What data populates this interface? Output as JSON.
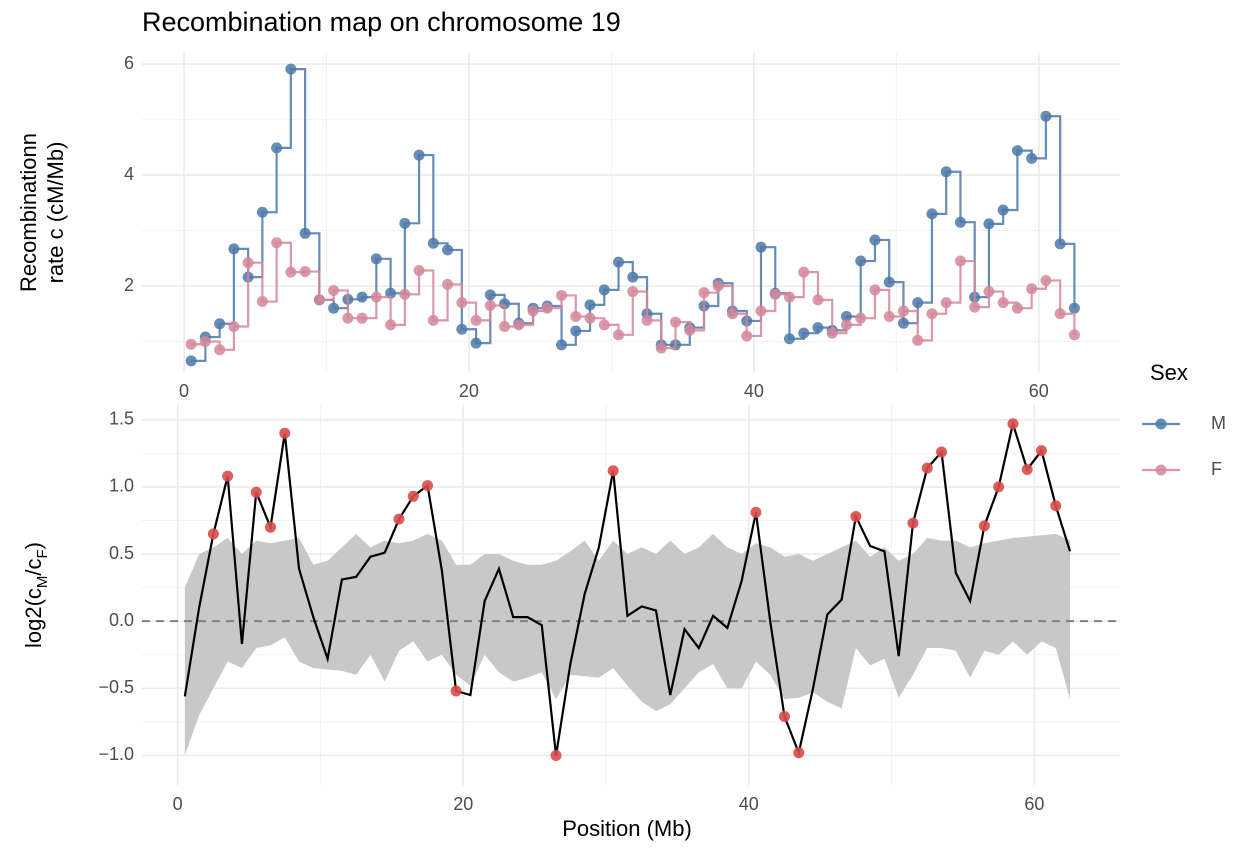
{
  "chart_data": [
    {
      "type": "step",
      "title": "Recombination map on chromosome 19",
      "ylabel": [
        "Recombinationn",
        "rate c (cM/Mb)"
      ],
      "x": [
        0.5,
        1.5,
        2.5,
        3.5,
        4.5,
        5.5,
        6.5,
        7.5,
        8.5,
        9.5,
        10.5,
        11.5,
        12.5,
        13.5,
        14.5,
        15.5,
        16.5,
        17.5,
        18.5,
        19.5,
        20.5,
        21.5,
        22.5,
        23.5,
        24.5,
        25.5,
        26.5,
        27.5,
        28.5,
        29.5,
        30.5,
        31.5,
        32.5,
        33.5,
        34.5,
        35.5,
        36.5,
        37.5,
        38.5,
        39.5,
        40.5,
        41.5,
        42.5,
        43.5,
        44.5,
        45.5,
        46.5,
        47.5,
        48.5,
        49.5,
        50.5,
        51.5,
        52.5,
        53.5,
        54.5,
        55.5,
        56.5,
        57.5,
        58.5,
        59.5,
        60.5,
        61.5,
        62.5
      ],
      "series": [
        {
          "name": "M",
          "color": "#4c78a8",
          "values": [
            0.65,
            1.08,
            1.32,
            2.67,
            2.16,
            3.33,
            4.49,
            5.91,
            2.95,
            1.75,
            1.6,
            1.76,
            1.8,
            2.49,
            1.87,
            3.13,
            4.36,
            2.77,
            2.65,
            1.22,
            0.97,
            1.84,
            1.68,
            1.33,
            1.6,
            1.64,
            0.94,
            1.19,
            1.66,
            1.93,
            2.43,
            2.16,
            1.5,
            0.94,
            0.94,
            1.25,
            1.64,
            2.05,
            1.55,
            1.37,
            2.7,
            1.87,
            1.05,
            1.15,
            1.25,
            1.2,
            1.45,
            2.45,
            2.83,
            2.07,
            1.33,
            1.7,
            3.3,
            4.06,
            3.15,
            1.8,
            3.12,
            3.37,
            4.44,
            4.3,
            5.06,
            2.76,
            1.6
          ]
        },
        {
          "name": "F",
          "color": "#d4879a",
          "values": [
            0.95,
            1.0,
            0.85,
            1.27,
            2.42,
            1.72,
            2.78,
            2.25,
            2.26,
            1.75,
            1.92,
            1.42,
            1.42,
            1.8,
            1.3,
            1.85,
            2.28,
            1.38,
            2.03,
            1.7,
            1.38,
            1.65,
            1.27,
            1.3,
            1.55,
            1.6,
            1.83,
            1.45,
            1.42,
            1.3,
            1.12,
            1.9,
            1.38,
            0.88,
            1.35,
            1.2,
            1.88,
            2.0,
            1.5,
            1.1,
            1.55,
            1.85,
            1.8,
            2.25,
            1.75,
            1.15,
            1.3,
            1.42,
            1.93,
            1.45,
            1.55,
            1.02,
            1.5,
            1.7,
            2.45,
            1.62,
            1.9,
            1.7,
            1.6,
            1.95,
            2.1,
            1.5,
            1.12
          ]
        }
      ],
      "xlim": [
        -2.95,
        65.7
      ],
      "xticks": [
        0,
        20,
        40,
        60
      ],
      "ylim": [
        0.45,
        6.2
      ],
      "yticks": [
        2,
        4,
        6
      ],
      "grid": true,
      "legend": {
        "title": "Sex",
        "position": "right"
      }
    },
    {
      "type": "line_ribbon",
      "xlabel": "Position (Mb)",
      "ylabel": [
        "log2(c",
        "M",
        "/c",
        "F",
        ")"
      ],
      "x": [
        0.5,
        1.5,
        2.5,
        3.5,
        4.5,
        5.5,
        6.5,
        7.5,
        8.5,
        9.5,
        10.5,
        11.5,
        12.5,
        13.5,
        14.5,
        15.5,
        16.5,
        17.5,
        18.5,
        19.5,
        20.5,
        21.5,
        22.5,
        23.5,
        24.5,
        25.5,
        26.5,
        27.5,
        28.5,
        29.5,
        30.5,
        31.5,
        32.5,
        33.5,
        34.5,
        35.5,
        36.5,
        37.5,
        38.5,
        39.5,
        40.5,
        41.5,
        42.5,
        43.5,
        44.5,
        45.5,
        46.5,
        47.5,
        48.5,
        49.5,
        50.5,
        51.5,
        52.5,
        53.5,
        54.5,
        55.5,
        56.5,
        57.5,
        58.5,
        59.5,
        60.5,
        61.5,
        62.5
      ],
      "values": [
        -0.56,
        0.1,
        0.65,
        1.08,
        -0.17,
        0.96,
        0.7,
        1.4,
        0.39,
        0.03,
        -0.28,
        0.31,
        0.33,
        0.48,
        0.51,
        0.76,
        0.93,
        1.01,
        0.38,
        -0.52,
        -0.55,
        0.15,
        0.39,
        0.03,
        0.03,
        -0.03,
        -1.0,
        -0.32,
        0.2,
        0.55,
        1.12,
        0.04,
        0.11,
        0.08,
        -0.55,
        -0.06,
        -0.2,
        0.04,
        -0.05,
        0.3,
        0.81,
        0.0,
        -0.71,
        -0.98,
        -0.5,
        0.05,
        0.16,
        0.78,
        0.56,
        0.52,
        -0.26,
        0.73,
        1.14,
        1.26,
        0.36,
        0.15,
        0.71,
        1.0,
        1.47,
        1.13,
        1.27,
        0.86,
        0.52
      ],
      "significant": [
        false,
        false,
        true,
        true,
        false,
        true,
        true,
        true,
        false,
        false,
        false,
        false,
        false,
        false,
        false,
        true,
        true,
        true,
        false,
        true,
        false,
        false,
        false,
        false,
        false,
        false,
        true,
        false,
        false,
        false,
        true,
        false,
        false,
        false,
        false,
        false,
        false,
        false,
        false,
        false,
        true,
        false,
        true,
        true,
        false,
        false,
        false,
        true,
        false,
        false,
        false,
        true,
        true,
        true,
        false,
        false,
        true,
        true,
        true,
        true,
        true,
        true,
        false
      ],
      "ribbon_upper": [
        0.25,
        0.5,
        0.55,
        0.62,
        0.5,
        0.6,
        0.58,
        0.6,
        0.62,
        0.42,
        0.45,
        0.55,
        0.65,
        0.55,
        0.6,
        0.58,
        0.6,
        0.65,
        0.6,
        0.42,
        0.42,
        0.5,
        0.5,
        0.45,
        0.42,
        0.42,
        0.45,
        0.52,
        0.6,
        0.45,
        0.6,
        0.5,
        0.55,
        0.5,
        0.6,
        0.5,
        0.55,
        0.65,
        0.55,
        0.5,
        0.58,
        0.55,
        0.48,
        0.5,
        0.45,
        0.5,
        0.55,
        0.6,
        0.48,
        0.55,
        0.45,
        0.5,
        0.62,
        0.6,
        0.6,
        0.55,
        0.58,
        0.6,
        0.62,
        0.63,
        0.64,
        0.65,
        0.6
      ],
      "ribbon_lower": [
        -1.0,
        -0.7,
        -0.5,
        -0.3,
        -0.35,
        -0.2,
        -0.18,
        -0.12,
        -0.3,
        -0.35,
        -0.36,
        -0.37,
        -0.4,
        -0.25,
        -0.45,
        -0.22,
        -0.15,
        -0.3,
        -0.25,
        -0.4,
        -0.48,
        -0.25,
        -0.38,
        -0.45,
        -0.42,
        -0.38,
        -0.58,
        -0.4,
        -0.41,
        -0.42,
        -0.35,
        -0.48,
        -0.6,
        -0.67,
        -0.62,
        -0.5,
        -0.38,
        -0.32,
        -0.5,
        -0.5,
        -0.3,
        -0.4,
        -0.58,
        -0.57,
        -0.53,
        -0.6,
        -0.65,
        -0.2,
        -0.33,
        -0.28,
        -0.57,
        -0.4,
        -0.2,
        -0.2,
        -0.22,
        -0.42,
        -0.22,
        -0.25,
        -0.15,
        -0.25,
        -0.15,
        -0.2,
        -0.58
      ],
      "color": "#000000",
      "point_color": "#d94b4b",
      "ribbon_color": "#c8c8c8",
      "hline": 0,
      "xlim": [
        -2.5,
        66.0
      ],
      "xticks": [
        0,
        20,
        40,
        60
      ],
      "ylim": [
        -1.22,
        1.61
      ],
      "yticks": [
        {
          "value": -1.0,
          "label": "−1.0"
        },
        {
          "value": -0.5,
          "label": "−0.5"
        },
        {
          "value": 0.0,
          "label": "0.0"
        },
        0.5,
        {
          "value": 1.0,
          "label": "1.0"
        },
        1.5
      ],
      "grid": true
    }
  ]
}
